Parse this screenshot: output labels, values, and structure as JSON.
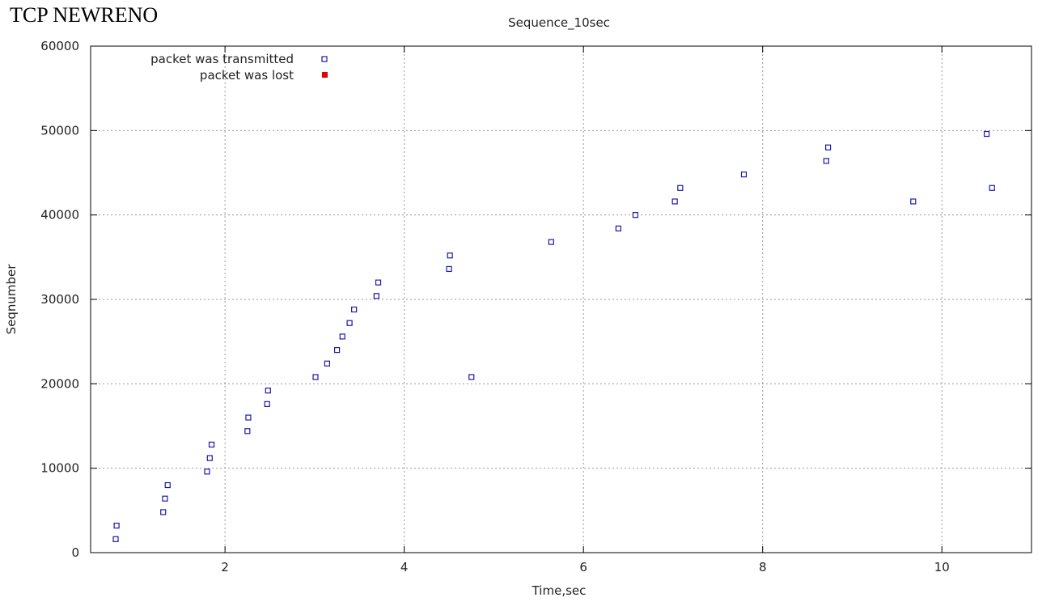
{
  "overlay_title": "TCP NEWRENO",
  "chart_data": {
    "type": "scatter",
    "title": "Sequence_10sec",
    "xlabel": "Time,sec",
    "ylabel": "Seqnumber",
    "xlim": [
      0.5,
      11
    ],
    "ylim": [
      0,
      60000
    ],
    "xticks": [
      2,
      4,
      6,
      8,
      10
    ],
    "yticks": [
      0,
      10000,
      20000,
      30000,
      40000,
      50000,
      60000
    ],
    "grid": true,
    "legend_position": "top-left",
    "series": [
      {
        "name": "packet was transmitted",
        "marker": "open-square",
        "color": "#1a1aa8",
        "points": [
          [
            0.78,
            1600
          ],
          [
            0.79,
            3200
          ],
          [
            1.31,
            4800
          ],
          [
            1.33,
            6400
          ],
          [
            1.36,
            8000
          ],
          [
            1.8,
            9600
          ],
          [
            1.83,
            11200
          ],
          [
            1.85,
            12800
          ],
          [
            2.25,
            14400
          ],
          [
            2.26,
            16000
          ],
          [
            2.47,
            17600
          ],
          [
            2.48,
            19200
          ],
          [
            3.01,
            20800
          ],
          [
            3.14,
            22400
          ],
          [
            3.25,
            24000
          ],
          [
            3.31,
            25600
          ],
          [
            3.39,
            27200
          ],
          [
            3.44,
            28800
          ],
          [
            3.69,
            30400
          ],
          [
            3.71,
            32000
          ],
          [
            4.5,
            33600
          ],
          [
            4.51,
            35200
          ],
          [
            4.75,
            20800
          ],
          [
            5.64,
            36800
          ],
          [
            6.39,
            38400
          ],
          [
            6.58,
            40000
          ],
          [
            7.02,
            41600
          ],
          [
            7.08,
            43200
          ],
          [
            7.79,
            44800
          ],
          [
            8.71,
            46400
          ],
          [
            8.73,
            48000
          ],
          [
            9.68,
            41600
          ],
          [
            10.5,
            49600
          ],
          [
            10.56,
            43200
          ]
        ]
      },
      {
        "name": "packet was lost",
        "marker": "filled-square",
        "color": "#e00000",
        "points": []
      }
    ]
  }
}
